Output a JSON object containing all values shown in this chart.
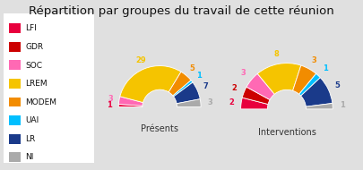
{
  "title": "Répartition par groupes du travail de cette réunion",
  "groups": [
    "LFI",
    "GDR",
    "SOC",
    "LREM",
    "MODEM",
    "UAI",
    "LR",
    "NI"
  ],
  "colors": [
    "#e8003d",
    "#cc0000",
    "#ff69b4",
    "#f5c400",
    "#f28c00",
    "#00bfff",
    "#1a3a8a",
    "#aaaaaa"
  ],
  "presents": [
    1,
    0,
    3,
    29,
    5,
    1,
    7,
    3
  ],
  "interventions": [
    2,
    2,
    3,
    8,
    3,
    1,
    5,
    1
  ],
  "background_color": "#e0e0e0",
  "title_fontsize": 9.5,
  "label_fontsize": 6,
  "legend_fontsize": 6.5,
  "subtitle_fontsize": 7
}
